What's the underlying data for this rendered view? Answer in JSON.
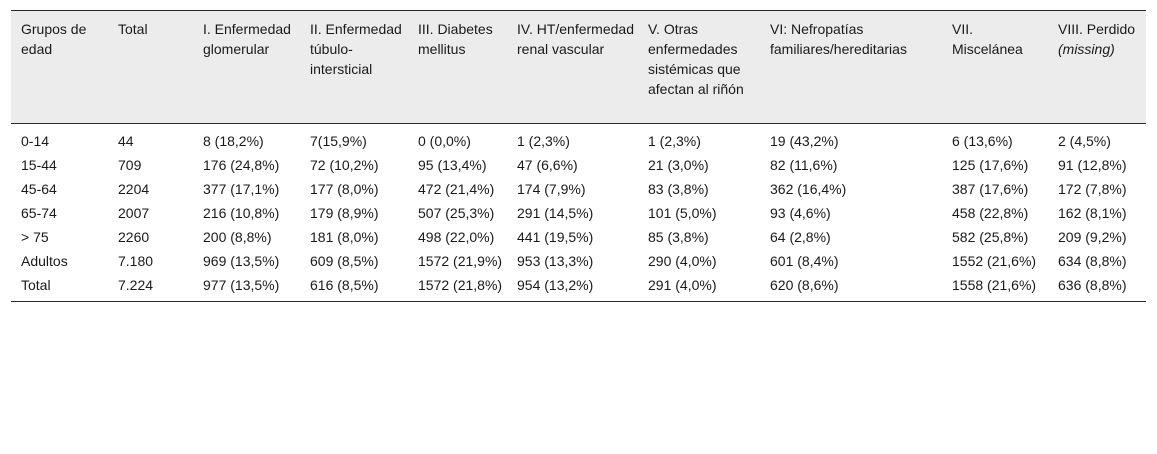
{
  "table": {
    "headers": [
      [
        "Grupos de edad"
      ],
      [
        "Total"
      ],
      [
        "I. Enfermedad glomerular"
      ],
      [
        "II. Enfermedad túbulo-intersticial"
      ],
      [
        "III. Diabetes mellitus"
      ],
      [
        "IV. HT/enfermedad renal vascular"
      ],
      [
        "V. Otras enfermedades sistémicas que afectan al riñón"
      ],
      [
        "VI: Nefropatías familiares/hereditarias"
      ],
      [
        "VII. Miscelánea"
      ],
      [
        "VIII. Perdido",
        "(missing)"
      ]
    ],
    "rows": [
      [
        "0-14",
        "44",
        "8 (18,2%)",
        "7(15,9%)",
        "0 (0,0%)",
        "1 (2,3%)",
        "1 (2,3%)",
        "19 (43,2%)",
        "6 (13,6%)",
        "2 (4,5%)"
      ],
      [
        "15-44",
        "709",
        "176 (24,8%)",
        "72 (10,2%)",
        "95 (13,4%)",
        "47 (6,6%)",
        "21 (3,0%)",
        "82 (11,6%)",
        "125 (17,6%)",
        "91 (12,8%)"
      ],
      [
        "45-64",
        "2204",
        "377 (17,1%)",
        "177 (8,0%)",
        "472 (21,4%)",
        "174 (7,9%)",
        "83 (3,8%)",
        "362 (16,4%)",
        "387 (17,6%)",
        "172 (7,8%)"
      ],
      [
        "65-74",
        "2007",
        "216 (10,8%)",
        "179 (8,9%)",
        "507 (25,3%)",
        "291 (14,5%)",
        "101 (5,0%)",
        "93 (4,6%)",
        "458 (22,8%)",
        "162 (8,1%)"
      ],
      [
        "> 75",
        "2260",
        "200 (8,8%)",
        "181 (8,0%)",
        "498 (22,0%)",
        "441 (19,5%)",
        "85 (3,8%)",
        "64 (2,8%)",
        "582 (25,8%)",
        "209 (9,2%)"
      ],
      [
        "Adultos",
        "7.180",
        "969 (13,5%)",
        "609 (8,5%)",
        "1572 (21,9%)",
        "953 (13,3%)",
        "290 (4,0%)",
        "601 (8,4%)",
        "1552 (21,6%)",
        "634 (8,8%)"
      ],
      [
        "Total",
        "7.224",
        "977 (13,5%)",
        "616 (8,5%)",
        "1572 (21,8%)",
        "954 (13,2%)",
        "291 (4,0%)",
        "620 (8,6%)",
        "1558 (21,6%)",
        "636 (8,8%)"
      ]
    ]
  }
}
